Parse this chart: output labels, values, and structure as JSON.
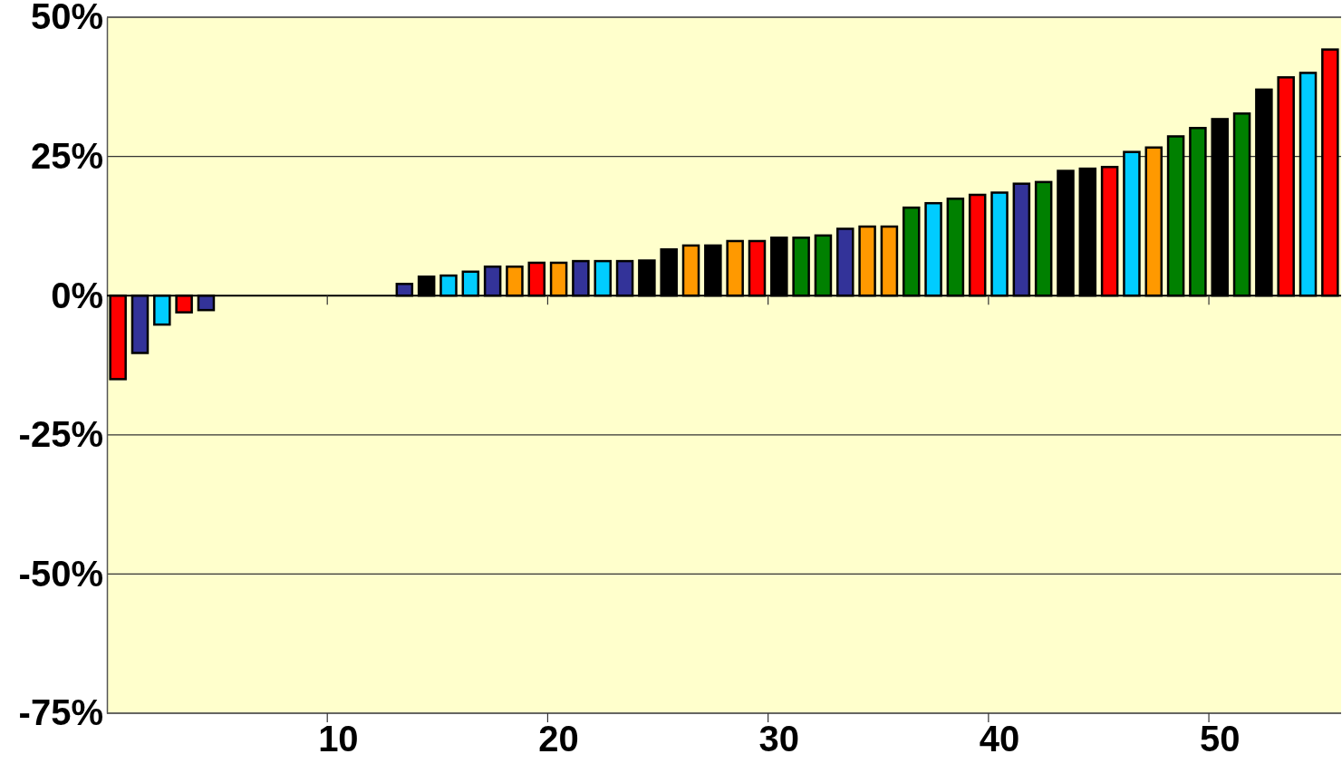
{
  "chart_data": {
    "type": "bar",
    "categories": [
      null,
      null,
      null,
      null,
      null,
      null,
      null,
      null,
      null,
      null,
      "10",
      null,
      null,
      null,
      null,
      null,
      null,
      null,
      null,
      null,
      "20",
      null,
      null,
      null,
      null,
      null,
      null,
      null,
      null,
      null,
      "30",
      null,
      null,
      null,
      null,
      null,
      null,
      null,
      null,
      null,
      "40",
      null,
      null,
      null,
      null,
      null,
      null,
      null,
      null,
      null,
      "50",
      null,
      null,
      null,
      null,
      null
    ],
    "values": [
      -15,
      -10.3,
      -5.2,
      -3,
      -2.6,
      0,
      0,
      0,
      0,
      0,
      0,
      0,
      0,
      2.1,
      3.4,
      3.6,
      4.3,
      5.2,
      5.2,
      5.9,
      5.9,
      6.2,
      6.2,
      6.2,
      6.3,
      8.3,
      9,
      9,
      9.8,
      9.8,
      10.4,
      10.4,
      10.8,
      12,
      12.4,
      12.4,
      15.8,
      16.6,
      17.4,
      18.1,
      18.5,
      20.1,
      20.4,
      22.4,
      22.8,
      23.1,
      25.8,
      26.6,
      28.6,
      30.1,
      31.7,
      32.7,
      37,
      39.2,
      40,
      44.2
    ],
    "colors": [
      "#ff0000",
      "#333399",
      "#00ccff",
      "#ff0000",
      "#333399",
      "#000000",
      "#000000",
      "#000000",
      "#000000",
      "#000000",
      "#000000",
      "#000000",
      "#000000",
      "#333399",
      "#000000",
      "#00ccff",
      "#00ccff",
      "#333399",
      "#ff9900",
      "#ff0000",
      "#ff9900",
      "#333399",
      "#00ccff",
      "#333399",
      "#000000",
      "#000000",
      "#ff9900",
      "#000000",
      "#ff9900",
      "#ff0000",
      "#000000",
      "#008000",
      "#008000",
      "#333399",
      "#ff9900",
      "#ff9900",
      "#008000",
      "#00ccff",
      "#008000",
      "#ff0000",
      "#00ccff",
      "#333399",
      "#008000",
      "#000000",
      "#000000",
      "#ff0000",
      "#00ccff",
      "#ff9900",
      "#008000",
      "#008000",
      "#000000",
      "#008000",
      "#000000",
      "#ff0000",
      "#00ccff",
      "#ff0000"
    ],
    "ylim": [
      -75,
      50
    ],
    "yticks": [
      {
        "value": 50,
        "label": "50%"
      },
      {
        "value": 25,
        "label": "25%"
      },
      {
        "value": 0,
        "label": "0%"
      },
      {
        "value": -25,
        "label": "-25%"
      },
      {
        "value": -50,
        "label": "-50%"
      },
      {
        "value": -75,
        "label": "-75%"
      }
    ],
    "grid": "y"
  }
}
